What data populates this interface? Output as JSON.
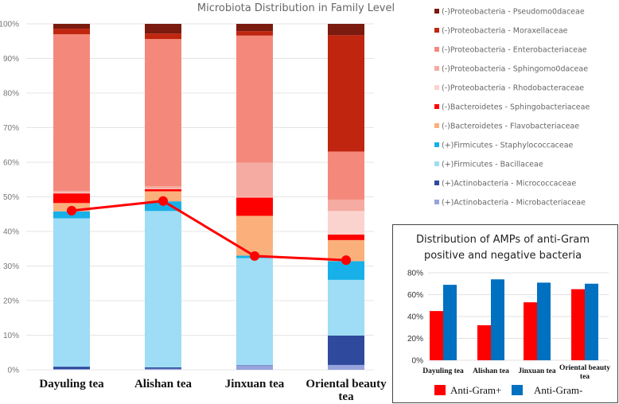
{
  "chart_data": [
    {
      "type": "bar",
      "stacked": true,
      "title": "Microbiota Distribution in Family Level",
      "xlabel": "",
      "ylabel": "",
      "ylim": [
        0,
        100
      ],
      "yticks": [
        "0%",
        "10%",
        "20%",
        "30%",
        "40%",
        "50%",
        "60%",
        "70%",
        "80%",
        "90%",
        "100%"
      ],
      "grid": true,
      "legend_position": "right",
      "categories": [
        "Dayuling tea",
        "Alishan tea",
        "Jinxuan tea",
        "Oriental beauty tea"
      ],
      "series": [
        {
          "name": "(+)Actinobacteria - Microbacteriaceae",
          "color": "#96a3dc",
          "values": [
            0.2,
            0.3,
            1.3,
            1.4
          ]
        },
        {
          "name": "(+)Actinobacteria - Micrococcaceae",
          "color": "#2f4a9c",
          "values": [
            0.7,
            0.4,
            0.1,
            8.5
          ]
        },
        {
          "name": "(+)Firmicutes - Bacillaceae",
          "color": "#9fdcf5",
          "values": [
            42.9,
            45.2,
            30.9,
            16.1
          ]
        },
        {
          "name": "(+)Firmicutes - Staphylococcaceae",
          "color": "#17b0e8",
          "values": [
            2.0,
            2.8,
            0.7,
            5.4
          ]
        },
        {
          "name": "(-)Bacteroidetes - Flavobacteriaceae",
          "color": "#fbb07b",
          "values": [
            2.4,
            2.9,
            11.5,
            6.1
          ]
        },
        {
          "name": "(-)Bacteroidetes - Sphingobacteriaceae",
          "color": "#ff0000",
          "values": [
            2.8,
            0.6,
            5.3,
            1.6
          ]
        },
        {
          "name": "(-)Proteobacteria - Rhodobacteraceae",
          "color": "#fad3ce",
          "values": [
            0.2,
            0.1,
            0.2,
            6.8
          ]
        },
        {
          "name": "(-)Proteobacteria - Sphingomo0daceae",
          "color": "#f5aba1",
          "values": [
            0.5,
            0.8,
            9.9,
            3.3
          ]
        },
        {
          "name": "(-)Proteobacteria - Enterobacteriaceae",
          "color": "#f4897b",
          "values": [
            45.3,
            42.5,
            36.7,
            13.9
          ]
        },
        {
          "name": "(-)Proteobacteria - Moraxellaceae",
          "color": "#c0260f",
          "values": [
            1.6,
            1.6,
            1.3,
            33.6
          ]
        },
        {
          "name": "(-)Proteobacteria - Pseudomo0daceae",
          "color": "#7b1a0e",
          "values": [
            1.4,
            2.8,
            2.1,
            3.3
          ]
        }
      ],
      "line": {
        "color": "#ff0000",
        "values": [
          46.0,
          48.8,
          32.9,
          31.7
        ]
      }
    },
    {
      "type": "bar",
      "title": "Distribution of AMPs of anti-Gram positive and negative bacteria",
      "title_lines": [
        "Distribution of AMPs of anti-Gram",
        "positive and negative bacteria"
      ],
      "ylim": [
        0,
        80
      ],
      "yticks": [
        "0%",
        "20%",
        "40%",
        "60%",
        "80%"
      ],
      "grid": true,
      "legend_position": "bottom",
      "categories": [
        "Dayuling tea",
        "Alishan tea",
        "Jinxuan tea",
        "Oriental beauty tea"
      ],
      "series": [
        {
          "name": "Anti-Gram+",
          "color": "#ff0000",
          "values": [
            45,
            32,
            53,
            65
          ]
        },
        {
          "name": "Anti-Gram-",
          "color": "#0070c0",
          "values": [
            69,
            74,
            71,
            70
          ]
        }
      ]
    }
  ]
}
